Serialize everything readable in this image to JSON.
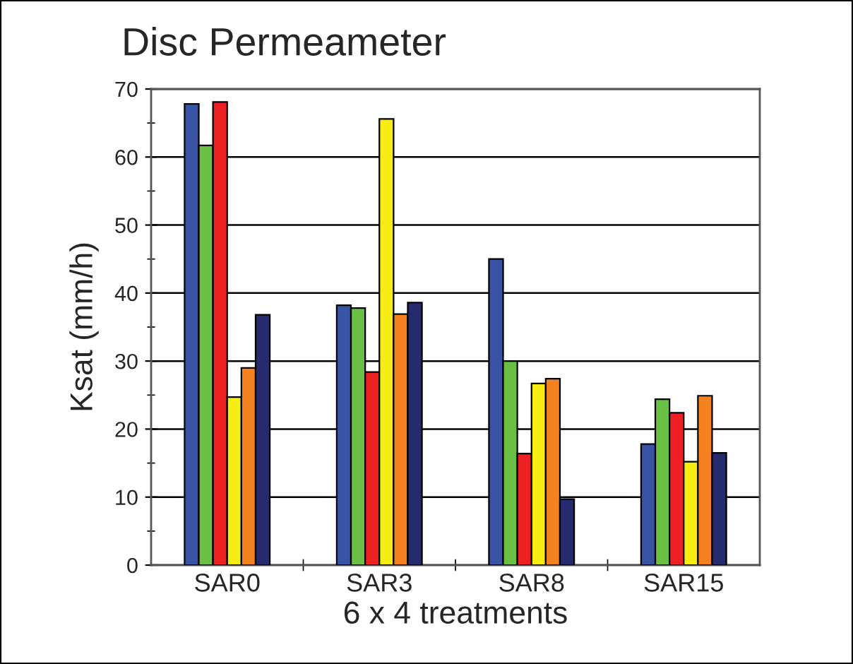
{
  "chart_data": {
    "type": "bar",
    "title": "Disc Permeameter",
    "xlabel": "6 x 4 treatments",
    "ylabel": "Ksat (mm/h)",
    "categories": [
      "SAR0",
      "SAR3",
      "SAR8",
      "SAR15"
    ],
    "series": [
      {
        "color": "#3953a4",
        "values": [
          67.8,
          38.2,
          45.0,
          17.8
        ]
      },
      {
        "color": "#6abf45",
        "values": [
          61.7,
          37.8,
          30.0,
          24.4
        ]
      },
      {
        "color": "#ed2024",
        "values": [
          68.1,
          28.4,
          16.4,
          22.4
        ]
      },
      {
        "color": "#f7ec14",
        "values": [
          24.7,
          65.6,
          26.7,
          15.2
        ]
      },
      {
        "color": "#f58220",
        "values": [
          29.0,
          36.9,
          27.4,
          24.9
        ]
      },
      {
        "color": "#262a6e",
        "values": [
          36.8,
          38.6,
          9.7,
          16.5
        ]
      }
    ],
    "ylim": [
      0,
      70
    ],
    "yticks": [
      0,
      {
        "value": 5,
        "label": null
      },
      10,
      {
        "value": 15,
        "label": null
      },
      20,
      {
        "value": 25,
        "label": null
      },
      30,
      {
        "value": 35,
        "label": null
      },
      40,
      {
        "value": 45,
        "label": null
      },
      50,
      {
        "value": 55,
        "label": null
      },
      60,
      {
        "value": 65,
        "label": null
      },
      70
    ],
    "grid": "y"
  }
}
